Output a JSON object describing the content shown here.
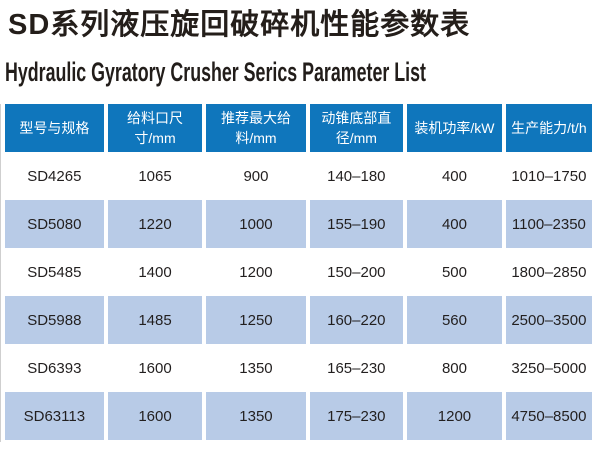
{
  "page": {
    "title_cn": "SD系列液压旋回破碎机性能参数表",
    "title_en": "Hydraulic Gyratory Crusher Serics Parameter List"
  },
  "table": {
    "headers": [
      "型号与规格",
      "给料口尺寸/mm",
      "推荐最大给料/mm",
      "动锥底部直径/mm",
      "装机功率/kW",
      "生产能力/t/h"
    ],
    "rows": [
      [
        "SD4265",
        "1065",
        "900",
        "140–180",
        "400",
        "1010–1750"
      ],
      [
        "SD5080",
        "1220",
        "1000",
        "155–190",
        "400",
        "1100–2350"
      ],
      [
        "SD5485",
        "1400",
        "1200",
        "150–200",
        "500",
        "1800–2850"
      ],
      [
        "SD5988",
        "1485",
        "1250",
        "160–220",
        "560",
        "2500–3500"
      ],
      [
        "SD6393",
        "1600",
        "1350",
        "165–230",
        "800",
        "3250–5000"
      ],
      [
        "SD63113",
        "1600",
        "1350",
        "175–230",
        "1200",
        "4750–8500"
      ]
    ],
    "colors": {
      "header_bg": "#0f76bc",
      "header_text": "#ffffff",
      "row_bg": "#ffffff",
      "row_alt_bg": "#b8cbe7",
      "cell_text": "#221f1f",
      "title_text": "#241e1a"
    }
  }
}
